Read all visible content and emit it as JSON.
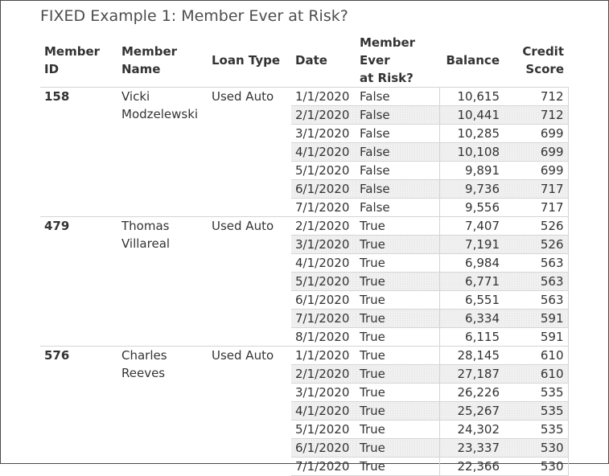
{
  "title": "FIXED Example 1: Member Ever at Risk?",
  "headers": {
    "member_id": "Member ID",
    "member_name_1": "Member",
    "member_name_2": "Name",
    "loan_type": "Loan Type",
    "date": "Date",
    "risk_1": "Member Ever",
    "risk_2": "at Risk?",
    "balance": "Balance",
    "credit_1": "Credit",
    "credit_2": "Score"
  },
  "members": [
    {
      "id": "158",
      "name_1": "Vicki",
      "name_2": "Modzelewski",
      "loan_type": "Used Auto",
      "rows": [
        {
          "date": "1/1/2020",
          "risk": "False",
          "balance": "10,615",
          "credit": "712"
        },
        {
          "date": "2/1/2020",
          "risk": "False",
          "balance": "10,441",
          "credit": "712"
        },
        {
          "date": "3/1/2020",
          "risk": "False",
          "balance": "10,285",
          "credit": "699"
        },
        {
          "date": "4/1/2020",
          "risk": "False",
          "balance": "10,108",
          "credit": "699"
        },
        {
          "date": "5/1/2020",
          "risk": "False",
          "balance": "9,891",
          "credit": "699"
        },
        {
          "date": "6/1/2020",
          "risk": "False",
          "balance": "9,736",
          "credit": "717"
        },
        {
          "date": "7/1/2020",
          "risk": "False",
          "balance": "9,556",
          "credit": "717"
        }
      ]
    },
    {
      "id": "479",
      "name_1": "Thomas",
      "name_2": "Villareal",
      "loan_type": "Used Auto",
      "rows": [
        {
          "date": "2/1/2020",
          "risk": "True",
          "balance": "7,407",
          "credit": "526"
        },
        {
          "date": "3/1/2020",
          "risk": "True",
          "balance": "7,191",
          "credit": "526"
        },
        {
          "date": "4/1/2020",
          "risk": "True",
          "balance": "6,984",
          "credit": "563"
        },
        {
          "date": "5/1/2020",
          "risk": "True",
          "balance": "6,771",
          "credit": "563"
        },
        {
          "date": "6/1/2020",
          "risk": "True",
          "balance": "6,551",
          "credit": "563"
        },
        {
          "date": "7/1/2020",
          "risk": "True",
          "balance": "6,334",
          "credit": "591"
        },
        {
          "date": "8/1/2020",
          "risk": "True",
          "balance": "6,115",
          "credit": "591"
        }
      ]
    },
    {
      "id": "576",
      "name_1": "Charles",
      "name_2": "Reeves",
      "loan_type": "Used Auto",
      "rows": [
        {
          "date": "1/1/2020",
          "risk": "True",
          "balance": "28,145",
          "credit": "610"
        },
        {
          "date": "2/1/2020",
          "risk": "True",
          "balance": "27,187",
          "credit": "610"
        },
        {
          "date": "3/1/2020",
          "risk": "True",
          "balance": "26,226",
          "credit": "535"
        },
        {
          "date": "4/1/2020",
          "risk": "True",
          "balance": "25,267",
          "credit": "535"
        },
        {
          "date": "5/1/2020",
          "risk": "True",
          "balance": "24,302",
          "credit": "535"
        },
        {
          "date": "6/1/2020",
          "risk": "True",
          "balance": "23,337",
          "credit": "530"
        },
        {
          "date": "7/1/2020",
          "risk": "True",
          "balance": "22,366",
          "credit": "530"
        }
      ]
    }
  ]
}
